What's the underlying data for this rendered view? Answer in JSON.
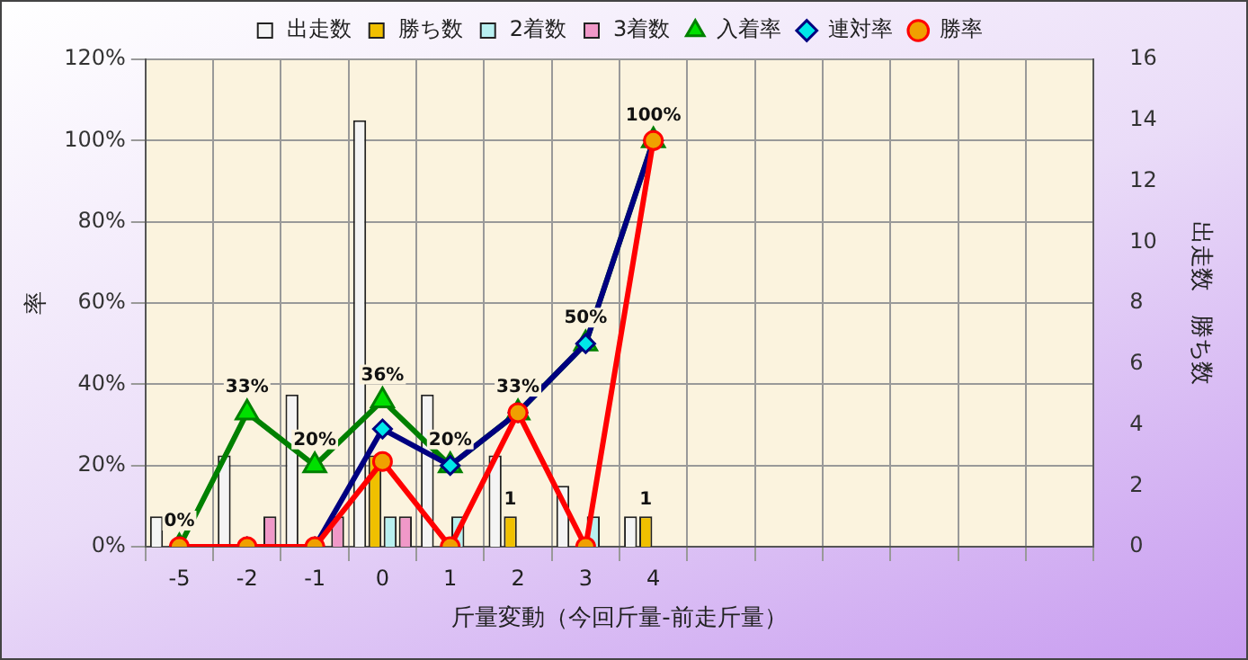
{
  "chart_data": {
    "type": "bar",
    "xlabel": "斤量変動（今回斤量-前走斤量）",
    "ylabel": "率",
    "y2label": "出走数　勝ち数",
    "categories": [
      "-5",
      "-2",
      "-1",
      "0",
      "1",
      "2",
      "3",
      "4",
      null,
      null,
      null,
      null,
      null,
      null
    ],
    "series": [
      {
        "name": "出走数",
        "type": "bar",
        "axis": "y2",
        "color": "#f4f4f4",
        "values": [
          1,
          3,
          5,
          14,
          5,
          3,
          2,
          1,
          null,
          null,
          null,
          null,
          null,
          null
        ]
      },
      {
        "name": "勝ち数",
        "type": "bar",
        "axis": "y2",
        "color": "#f0c000",
        "values": [
          0,
          0,
          0,
          3,
          0,
          1,
          0,
          1,
          null,
          null,
          null,
          null,
          null,
          null
        ],
        "value_labels": [
          null,
          null,
          null,
          null,
          null,
          "1",
          null,
          "1",
          null,
          null,
          null,
          null,
          null,
          null
        ]
      },
      {
        "name": "2着数",
        "type": "bar",
        "axis": "y2",
        "color": "#b8f0f0",
        "values": [
          0,
          0,
          0,
          1,
          1,
          0,
          1,
          0,
          null,
          null,
          null,
          null,
          null,
          null
        ]
      },
      {
        "name": "3着数",
        "type": "bar",
        "axis": "y2",
        "color": "#f098c8",
        "values": [
          0,
          1,
          1,
          1,
          0,
          0,
          0,
          0,
          null,
          null,
          null,
          null,
          null,
          null
        ]
      },
      {
        "name": "入着率",
        "type": "line",
        "axis": "y",
        "color": "#008000",
        "marker": "triangle",
        "values": [
          0,
          33,
          20,
          36,
          20,
          33,
          50,
          100,
          null,
          null,
          null,
          null,
          null,
          null
        ],
        "value_labels": [
          "0%",
          "33%",
          "20%",
          "36%",
          "20%",
          "33%",
          "50%",
          "100%",
          null,
          null,
          null,
          null,
          null,
          null
        ]
      },
      {
        "name": "連対率",
        "type": "line",
        "axis": "y",
        "color": "#000080",
        "marker": "diamond",
        "values": [
          0,
          0,
          0,
          29,
          20,
          33,
          50,
          100,
          null,
          null,
          null,
          null,
          null,
          null
        ]
      },
      {
        "name": "勝率",
        "type": "line",
        "axis": "y",
        "color": "#ff0000",
        "marker": "circle",
        "values": [
          0,
          0,
          0,
          21,
          0,
          33,
          0,
          100,
          null,
          null,
          null,
          null,
          null,
          null
        ]
      }
    ],
    "ylim": [
      0,
      120
    ],
    "yticks": [
      {
        "value": 0,
        "label": "0%"
      },
      {
        "value": 20,
        "label": "20%"
      },
      {
        "value": 40,
        "label": "40%"
      },
      {
        "value": 60,
        "label": "60%"
      },
      {
        "value": 80,
        "label": "80%"
      },
      {
        "value": 100,
        "label": "100%"
      },
      {
        "value": 120,
        "label": "120%"
      }
    ],
    "y2lim": [
      0,
      16
    ],
    "y2ticks": [
      0,
      2,
      4,
      6,
      8,
      10,
      12,
      14,
      16
    ],
    "grid": true,
    "legend": "top",
    "line_style": "solid"
  }
}
